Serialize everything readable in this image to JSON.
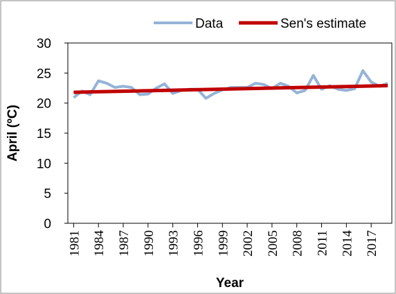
{
  "chart_data": {
    "type": "line",
    "y_label": "April (ºC)",
    "x_label": "Year",
    "xlim": [
      1980.3,
      2019.5
    ],
    "ylim": [
      0,
      30
    ],
    "xticks": [
      1981,
      1984,
      1987,
      1990,
      1993,
      1996,
      1999,
      2002,
      2005,
      2008,
      2011,
      2014,
      2017
    ],
    "yticks": [
      0,
      5,
      10,
      15,
      20,
      25,
      30
    ],
    "series": [
      {
        "name": "Data",
        "color": "#95b3d7",
        "x": [
          1981,
          1982,
          1983,
          1984,
          1985,
          1986,
          1987,
          1988,
          1989,
          1990,
          1991,
          1992,
          1993,
          1994,
          1995,
          1996,
          1997,
          1998,
          1999,
          2000,
          2001,
          2002,
          2003,
          2004,
          2005,
          2006,
          2007,
          2008,
          2009,
          2010,
          2011,
          2012,
          2013,
          2014,
          2015,
          2016,
          2017,
          2018,
          2019
        ],
        "values": [
          20.9,
          22.0,
          21.4,
          23.7,
          23.3,
          22.6,
          22.8,
          22.6,
          21.4,
          21.5,
          22.5,
          23.2,
          21.6,
          22.1,
          22.3,
          22.3,
          20.8,
          21.6,
          22.2,
          22.6,
          22.6,
          22.6,
          23.3,
          23.1,
          22.4,
          23.3,
          22.8,
          21.7,
          22.1,
          24.6,
          22.3,
          22.9,
          22.3,
          22.1,
          22.4,
          25.4,
          23.5,
          22.8,
          23.3
        ]
      },
      {
        "name": "Sen's estimate",
        "color": "#c00000",
        "x": [
          1981,
          2019
        ],
        "values": [
          21.8,
          22.9
        ]
      }
    ]
  }
}
